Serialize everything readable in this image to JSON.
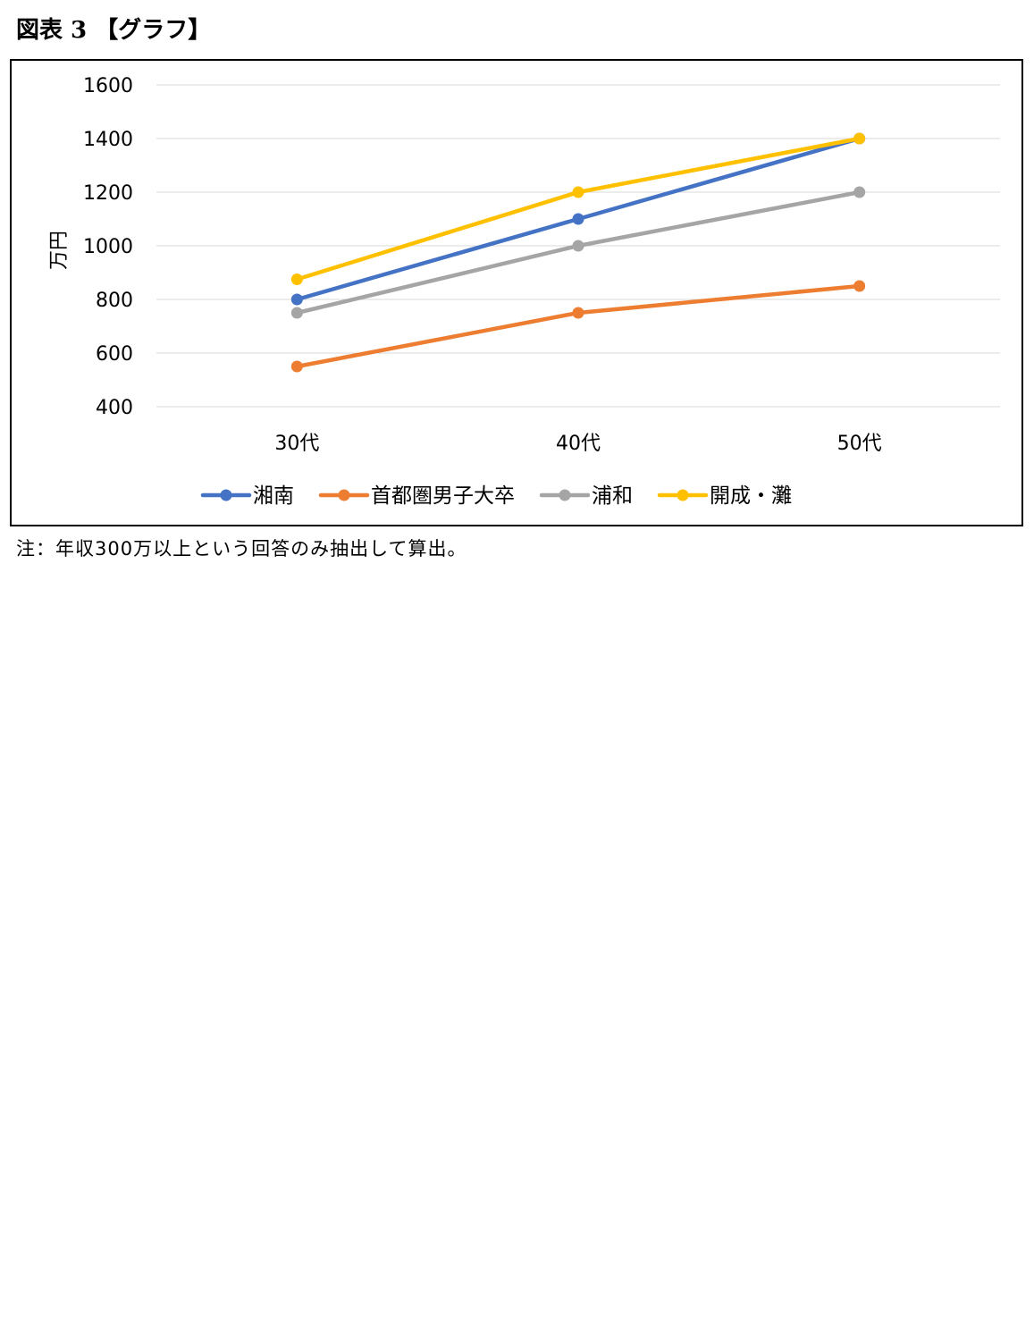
{
  "page": {
    "title": "図表 3 【グラフ】",
    "note": "注：年収300万以上という回答のみ抽出して算出。"
  },
  "chart_data": {
    "type": "line",
    "title": "",
    "xlabel": "",
    "ylabel": "万円",
    "categories": [
      "30代",
      "40代",
      "50代"
    ],
    "ylim": [
      400,
      1600
    ],
    "yticks": [
      400,
      600,
      800,
      1000,
      1200,
      1400,
      1600
    ],
    "grid": true,
    "legend_position": "bottom",
    "series": [
      {
        "name": "湘南",
        "color": "#4472C4",
        "values": [
          800,
          1100,
          1400
        ]
      },
      {
        "name": "首都圏男子大卒",
        "color": "#ED7D31",
        "values": [
          550,
          750,
          850
        ]
      },
      {
        "name": "浦和",
        "color": "#A5A5A5",
        "values": [
          750,
          1000,
          1200
        ]
      },
      {
        "name": "開成・灘",
        "color": "#FFC000",
        "values": [
          875,
          1200,
          1400
        ]
      }
    ]
  }
}
